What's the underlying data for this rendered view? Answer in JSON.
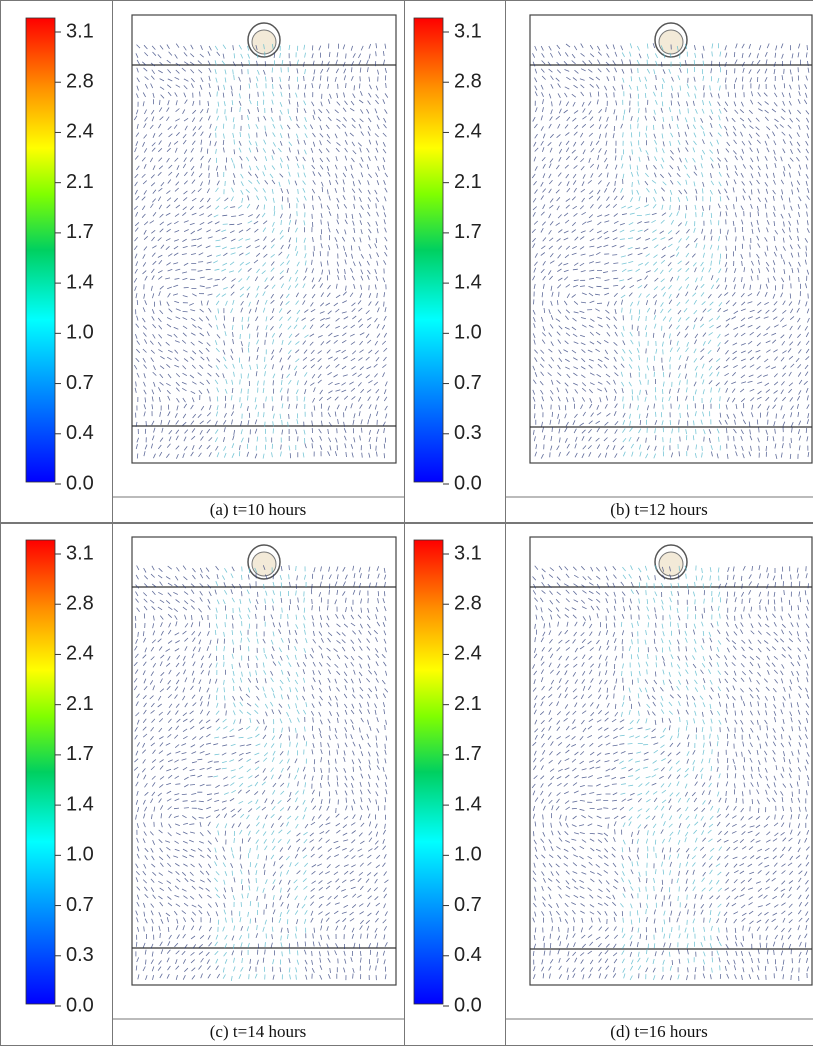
{
  "panels": [
    {
      "caption": "(a) t=10 hours",
      "colorbar_labels": [
        "3.1",
        "2.8",
        "2.4",
        "2.1",
        "1.7",
        "1.4",
        "1.0",
        "0.7",
        "0.4",
        "0.0"
      ]
    },
    {
      "caption": "(b) t=12 hours",
      "colorbar_labels": [
        "3.1",
        "2.8",
        "2.4",
        "2.1",
        "1.7",
        "1.4",
        "1.0",
        "0.7",
        "0.3",
        "0.0"
      ]
    },
    {
      "caption": "(c) t=14 hours",
      "colorbar_labels": [
        "3.1",
        "2.8",
        "2.4",
        "2.1",
        "1.7",
        "1.4",
        "1.0",
        "0.7",
        "0.3",
        "0.0"
      ]
    },
    {
      "caption": "(d) t=16 hours",
      "colorbar_labels": [
        "3.1",
        "2.8",
        "2.4",
        "2.1",
        "1.7",
        "1.4",
        "1.0",
        "0.7",
        "0.4",
        "0.0"
      ]
    }
  ]
}
